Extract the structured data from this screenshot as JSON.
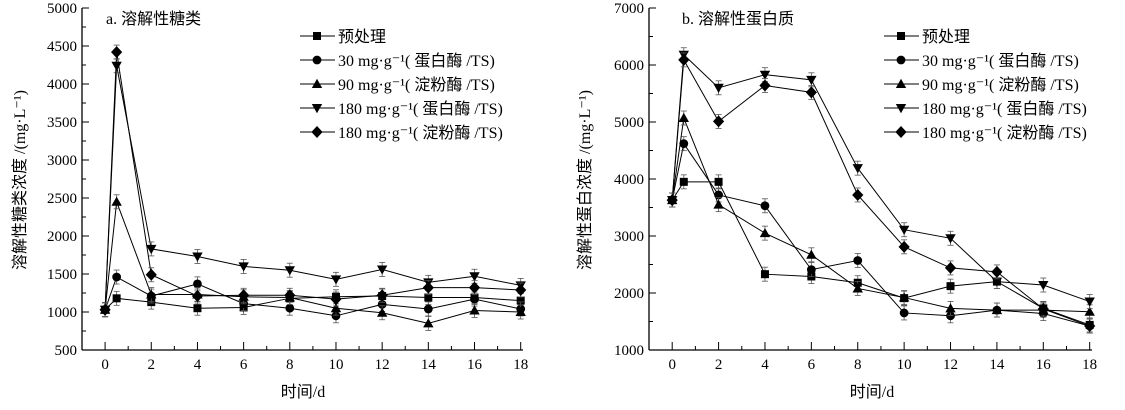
{
  "chart_data": [
    {
      "type": "line",
      "title": "a. 溶解性糖类",
      "xlabel": "时间/d",
      "ylabel": "溶解性糖类浓度 /(mg·L⁻¹)",
      "xlim": [
        -1,
        18.1
      ],
      "ylim": [
        500,
        5000
      ],
      "xticks": [
        0,
        2,
        4,
        6,
        8,
        10,
        12,
        14,
        16,
        18
      ],
      "yticks": [
        500,
        1000,
        1500,
        2000,
        2500,
        3000,
        3500,
        4000,
        4500,
        5000
      ],
      "grid": false,
      "legend_position": "top-right",
      "x": [
        0,
        0.5,
        2,
        4,
        6,
        8,
        10,
        12,
        14,
        16,
        18
      ],
      "series": [
        {
          "name": "预处理",
          "marker": "square",
          "values": [
            1030,
            1180,
            1130,
            1050,
            1060,
            1180,
            1200,
            1210,
            1190,
            1190,
            1150
          ]
        },
        {
          "name": "30 mg·g⁻¹( 蛋白酶 /TS)",
          "marker": "circle",
          "values": [
            1030,
            1460,
            1210,
            1370,
            1110,
            1050,
            950,
            1100,
            1040,
            1170,
            1040
          ]
        },
        {
          "name": "90 mg·g⁻¹( 淀粉酶 /TS)",
          "marker": "triangle-up",
          "values": [
            1030,
            2450,
            1230,
            1230,
            1200,
            1190,
            1050,
            990,
            850,
            1020,
            1000
          ]
        },
        {
          "name": "180 mg·g⁻¹( 蛋白酶 /TS)",
          "marker": "triangle-down",
          "values": [
            1030,
            4240,
            1830,
            1730,
            1600,
            1550,
            1430,
            1560,
            1390,
            1470,
            1350
          ]
        },
        {
          "name": "180 mg·g⁻¹( 淀粉酶 /TS)",
          "marker": "diamond",
          "values": [
            1030,
            4420,
            1490,
            1210,
            1220,
            1220,
            1170,
            1220,
            1320,
            1320,
            1290
          ]
        }
      ]
    },
    {
      "type": "line",
      "title": "b. 溶解性蛋白质",
      "xlabel": "时间/d",
      "ylabel": "溶解性蛋白浓度 /(mg·L⁻¹)",
      "xlim": [
        -1,
        18.1
      ],
      "ylim": [
        1000,
        7000
      ],
      "xticks": [
        0,
        2,
        4,
        6,
        8,
        10,
        12,
        14,
        16,
        18
      ],
      "yticks": [
        1000,
        2000,
        3000,
        4000,
        5000,
        6000,
        7000
      ],
      "grid": false,
      "legend_position": "top-right",
      "x": [
        0,
        0.5,
        2,
        4,
        6,
        8,
        10,
        12,
        14,
        16,
        18
      ],
      "series": [
        {
          "name": "预处理",
          "marker": "square",
          "values": [
            3630,
            3950,
            3950,
            2330,
            2290,
            2180,
            1910,
            2120,
            2200,
            1730,
            1440
          ]
        },
        {
          "name": "30 mg·g⁻¹( 蛋白酶 /TS)",
          "marker": "circle",
          "values": [
            3630,
            4620,
            3720,
            3530,
            2410,
            2570,
            1650,
            1600,
            1700,
            1640,
            1420
          ]
        },
        {
          "name": "90 mg·g⁻¹( 淀粉酶 /TS)",
          "marker": "triangle-up",
          "values": [
            3630,
            5070,
            3550,
            3050,
            2670,
            2080,
            1920,
            1730,
            1700,
            1700,
            1670
          ]
        },
        {
          "name": "180 mg·g⁻¹( 蛋白酶 /TS)",
          "marker": "triangle-down",
          "values": [
            3630,
            6180,
            5600,
            5830,
            5740,
            4190,
            3110,
            2960,
            2200,
            2140,
            1850
          ]
        },
        {
          "name": "180 mg·g⁻¹( 淀粉酶 /TS)",
          "marker": "diamond",
          "values": [
            3630,
            6090,
            5010,
            5640,
            5520,
            3720,
            2810,
            2440,
            2370,
            1720,
            1420
          ]
        }
      ]
    }
  ]
}
